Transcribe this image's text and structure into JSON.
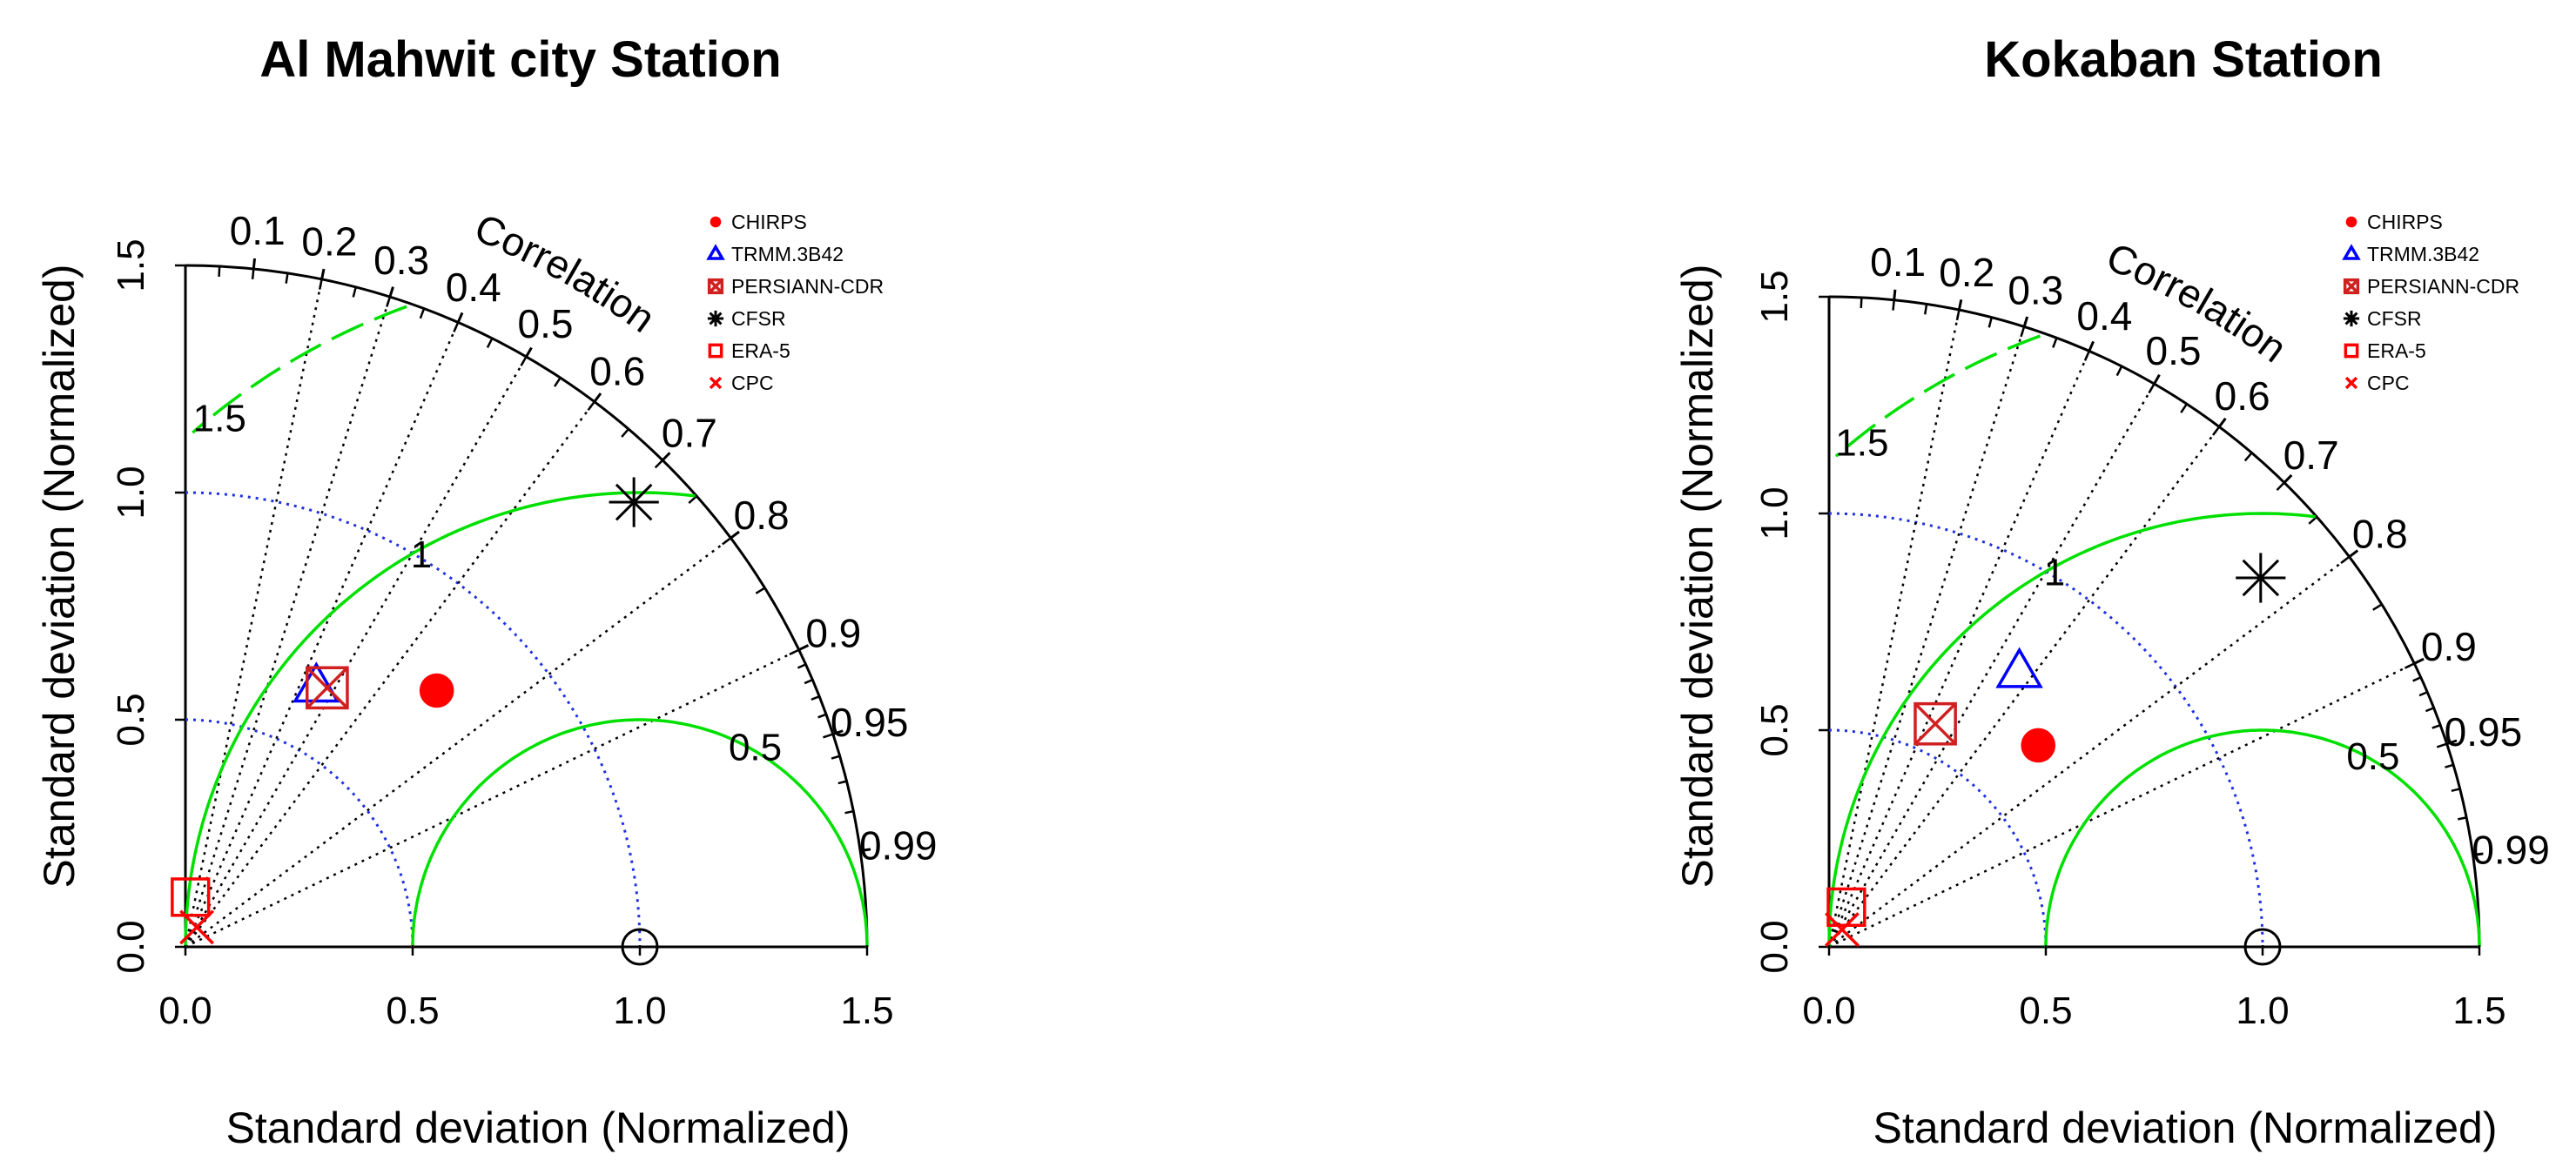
{
  "chart_data": [
    {
      "type": "taylor",
      "title": "Al Mahwit city Station",
      "xlabel": "Standard deviation (Normalized)",
      "ylabel": "Standard deviation (Normalized)",
      "xlim": [
        0,
        1.5
      ],
      "ylim": [
        0,
        1.5
      ],
      "ticks": [
        "0.0",
        "0.5",
        "1.0",
        "1.5"
      ],
      "correlation_label": "Correlation",
      "correlation_ticks": [
        "0.1",
        "0.2",
        "0.3",
        "0.4",
        "0.5",
        "0.6",
        "0.7",
        "0.8",
        "0.9",
        "0.95",
        "0.99"
      ],
      "rms_contour_labels": [
        "0.5",
        "1",
        "1.5"
      ],
      "legend_position": "top-right",
      "reference": {
        "sd": 1.0,
        "corr": 1.0
      },
      "series": [
        {
          "name": "CHIRPS",
          "symbol": "filled-circle",
          "color": "#ff0000",
          "sd": 0.79,
          "corr": 0.7
        },
        {
          "name": "TRMM.3B42",
          "symbol": "triangle",
          "color": "#0000ff",
          "sd": 0.64,
          "corr": 0.45
        },
        {
          "name": "PERSIANN-CDR",
          "symbol": "square-x",
          "color": "#d02020",
          "sd": 0.65,
          "corr": 0.48
        },
        {
          "name": "CFSR",
          "symbol": "asterisk",
          "color": "#000000",
          "sd": 1.39,
          "corr": 0.71
        },
        {
          "name": "ERA-5",
          "symbol": "square",
          "color": "#ff0000",
          "sd": 0.11,
          "corr": 0.1
        },
        {
          "name": "CPC",
          "symbol": "x",
          "color": "#ff0000",
          "sd": 0.05,
          "corr": 0.5
        }
      ]
    },
    {
      "type": "taylor",
      "title": "Kokaban Station",
      "xlabel": "Standard deviation (Normalized)",
      "ylabel": "Standard deviation (Normalized)",
      "xlim": [
        0,
        1.5
      ],
      "ylim": [
        0,
        1.5
      ],
      "ticks": [
        "0.0",
        "0.5",
        "1.0",
        "1.5"
      ],
      "correlation_label": "Correlation",
      "correlation_ticks": [
        "0.1",
        "0.2",
        "0.3",
        "0.4",
        "0.5",
        "0.6",
        "0.7",
        "0.8",
        "0.9",
        "0.95",
        "0.99"
      ],
      "rms_contour_labels": [
        "0.5",
        "1",
        "1.5"
      ],
      "legend_position": "top-right",
      "reference": {
        "sd": 1.0,
        "corr": 1.0
      },
      "series": [
        {
          "name": "CHIRPS",
          "symbol": "filled-circle",
          "color": "#ff0000",
          "sd": 0.67,
          "corr": 0.72
        },
        {
          "name": "TRMM.3B42",
          "symbol": "triangle",
          "color": "#0000ff",
          "sd": 0.77,
          "corr": 0.57
        },
        {
          "name": "PERSIANN-CDR",
          "symbol": "square-x",
          "color": "#d02020",
          "sd": 0.57,
          "corr": 0.43
        },
        {
          "name": "CFSR",
          "symbol": "asterisk",
          "color": "#000000",
          "sd": 1.31,
          "corr": 0.76
        },
        {
          "name": "ERA-5",
          "symbol": "square",
          "color": "#ff0000",
          "sd": 0.1,
          "corr": 0.4
        },
        {
          "name": "CPC",
          "symbol": "x",
          "color": "#ff0000",
          "sd": 0.05,
          "corr": 0.6
        }
      ]
    }
  ]
}
